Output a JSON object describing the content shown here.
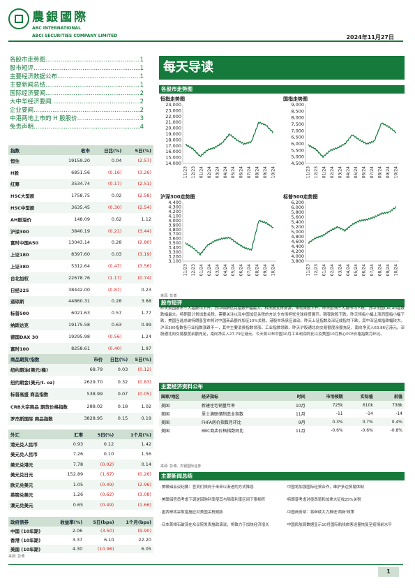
{
  "header": {
    "brand_cn": "農銀國際",
    "brand_en1": "ABC INTERNATIONAL",
    "brand_en2": "ABCI SECURITIES COMPANY LIMITED",
    "date": "2024年11月27日"
  },
  "toc": [
    {
      "label": "各股市走势图",
      "page": "1"
    },
    {
      "label": "股市短评",
      "page": "1"
    },
    {
      "label": "主要经济数据公布",
      "page": "1"
    },
    {
      "label": "主要新闻总结",
      "page": "1"
    },
    {
      "label": "国际经济要闻",
      "page": "2"
    },
    {
      "label": "大中华经济要闻",
      "page": "2"
    },
    {
      "label": "企业要闻",
      "page": "2"
    },
    {
      "label": "中港两地上市的 H 股股价",
      "page": "3"
    },
    {
      "label": "免责声明",
      "page": "4"
    }
  ],
  "indices": {
    "headers": [
      "指数",
      "收市",
      "日比(%)",
      "5日(%)"
    ],
    "rows": [
      [
        "恒生",
        "19159.20",
        "0.04",
        "(2.57)"
      ],
      [
        "H股",
        "6851.56",
        "(0.16)",
        "(3.26)"
      ],
      [
        "红筹",
        "3534.74",
        "(0.17)",
        "(2.51)"
      ],
      [
        "HSC大型股",
        "1758.75",
        "0.02",
        "(2.58)"
      ],
      [
        "HSC中型股",
        "3635.45",
        "(0.30)",
        "(2.54)"
      ],
      [
        "AH股溢价",
        "148.09",
        "0.62",
        "1.12"
      ],
      [
        "沪深300",
        "3840.19",
        "(0.21)",
        "(3.44)"
      ],
      [
        "富时中国A50",
        "13043.14",
        "0.28",
        "(2.80)"
      ],
      [
        "上证180",
        "8397.60",
        "0.03",
        "(3.19)"
      ],
      [
        "上证380",
        "5312.64",
        "(0.47)",
        "(3.56)"
      ],
      [
        "台北加权",
        "22678.76",
        "(1.17)",
        "(0.74)"
      ],
      [
        "日经225",
        "38442.00",
        "(0.87)",
        "0.23"
      ],
      [
        "道琼斯",
        "44860.31",
        "0.28",
        "3.68"
      ],
      [
        "标普500",
        "6021.63",
        "0.57",
        "1.77"
      ],
      [
        "纳斯达克",
        "19175.58",
        "0.63",
        "0.99"
      ],
      [
        "德国DAX 30",
        "19295.98",
        "(0.56)",
        "1.24"
      ],
      [
        "富时100",
        "8258.61",
        "(0.40)",
        "1.97"
      ],
      [
        "法国CAC 40",
        "7194.51",
        "(0.87)",
        "(0.49)"
      ]
    ]
  },
  "commodities": {
    "headers": [
      "商品期货/指数",
      "市价",
      "日比(%)",
      "5日(%)"
    ],
    "rows": [
      [
        "纽约期油(美元/桶)",
        "68.79",
        "0.03",
        "(0.12)"
      ],
      [
        "纽约期金(美元/t. oz)",
        "2629.70",
        "0.32",
        "(0.83)"
      ],
      [
        "标普高盛 商品指数",
        "538.99",
        "0.07",
        "(0.05)"
      ],
      [
        "CRB大宗商品 期货价格指数",
        "288.02",
        "0.18",
        "1.02"
      ],
      [
        "罗杰斯国际 商品指数",
        "3828.95",
        "0.15",
        "0.19"
      ]
    ]
  },
  "fx": {
    "headers": [
      "外汇",
      "汇率",
      "5日(%)",
      "1个月(%)"
    ],
    "rows": [
      [
        "港元兑人民币",
        "0.93",
        "0.12",
        "1.42"
      ],
      [
        "美元兑人民币",
        "7.26",
        "0.10",
        "1.56"
      ],
      [
        "美元兑港元",
        "7.78",
        "(0.02)",
        "0.14"
      ],
      [
        "美元兑日元",
        "152.89",
        "(1.67)",
        "(0.26)"
      ],
      [
        "欧元兑美元",
        "1.05",
        "(0.49)",
        "(2.96)"
      ],
      [
        "英镑兑美元",
        "1.26",
        "(0.62)",
        "(3.08)"
      ],
      [
        "澳元兑美元",
        "0.65",
        "(0.49)",
        "(1.66)"
      ]
    ]
  },
  "bonds": {
    "headers": [
      "政府债券",
      "收益率(%)",
      "5日(bps)",
      "1个月(bps)"
    ],
    "rows": [
      [
        "中国 (10年期)",
        "2.06",
        "(3.50)",
        "(9.90)"
      ],
      [
        "香港 (10年期)",
        "3.37",
        "6.10",
        "22.20"
      ],
      [
        "美国 (10年期)",
        "4.30",
        "(10.96)",
        "6.05"
      ]
    ],
    "source": "来源: 彭博"
  },
  "main": {
    "title": "每天导读",
    "charts_section": "各股市走势图",
    "source": "来源: 彭博",
    "commentary_section": "股市短评",
    "commentary": "昨天美国股市三大指数均上升，其中纳斯达克指数升幅最大。科技股支撑反弹，带动美股上升。昨天欧洲三大股市均下跌，其中法国CAC40指数跌幅最大。特朗普计划加重关税，需要关注以及中国加征关税的言论令市场担忧全球经贸展开。隔夜欧股下跌。昨天恒指小幅上涨而国指小幅下跌，美国当选总统特朗普宣布将对中国商品额外加征10%关税，港股市场承压波动。昨天上证指数及深证成指均下跌，其中深证成指跌幅较大。沪深300指数各行业指数涨跌不一，其中主要消费指数领涨。工业指数领跌。昨天沪股通北向交易额度余额充足，南向净买入63.86亿港元。深股通北向交易额度余额充足，南向净买入27.79亿港元。今天将公布中国10月工业利润同比以及美国10月核心PCE价格指数月环比。",
    "econ_section": "主要经济资料公布",
    "econ_headers": [
      "国家/地区",
      "经济指标",
      "时间",
      "市场预期",
      "实际值",
      "前值"
    ],
    "econ_rows": [
      [
        "美国",
        "新建住宅销量年率",
        "10月",
        "725k",
        "610k",
        "738k"
      ],
      [
        "美国",
        "里士满联储制造业指数",
        "11月",
        "-11",
        "-14",
        "-14"
      ],
      [
        "美国",
        "FHFA房价指数月环比",
        "9月",
        "0.3%",
        "0.7%",
        "0.4%"
      ],
      [
        "美国",
        "BBC商店价格指数同比",
        "11月",
        "-0.6%",
        "-0.6%",
        "-0.8%"
      ]
    ],
    "econ_source": "来源: 彭博、农银国际证券",
    "news_section": "主要新闻总结",
    "news_left": [
      "·美联储会议纪要：官员们倾向于未来以渐进的方式降息",
      "·美联储官员考虑下调逆回购利率使其与隔夜利率区间下限相符",
      "·墨西哥将采取措施应对美国关税威胁",
      "·日本首相石破茂在众议院发表施政演说，将致力于加快经济增长"
    ],
    "news_right": [
      "·中国将加强国际经贸合作，维护多边贸易体制",
      "·特朗普考虑对墨西哥和加拿大征收25%关税",
      "·中国商务部：将继续大力推进'两新'政策",
      "·中国民航局数据显示10月国际航线旅客运量恢复至疫情前水平"
    ]
  },
  "charts": [
    {
      "title": "恒指走势图",
      "ylim": [
        14000,
        24000
      ],
      "ticks": [
        "24,000",
        "23,000",
        "22,000",
        "21,000",
        "20,000",
        "19,000",
        "18,000",
        "17,000",
        "16,000",
        "15,000",
        "14,000"
      ]
    },
    {
      "title": "国指走势图",
      "ylim": [
        4500,
        9000
      ],
      "ticks": [
        "9,000",
        "8,500",
        "8,000",
        "7,500",
        "7,000",
        "6,500",
        "6,000",
        "5,500",
        "5,000",
        "4,500"
      ]
    },
    {
      "title": "沪深300走势图",
      "ylim": [
        3100,
        4400
      ],
      "ticks": [
        "4,400",
        "4,300",
        "4,200",
        "4,100",
        "4,000",
        "3,900",
        "3,800",
        "3,700",
        "3,600",
        "3,500",
        "3,400",
        "3,300",
        "3,200",
        "3,100"
      ]
    },
    {
      "title": "标普500走势图",
      "ylim": [
        3800,
        6200
      ],
      "ticks": [
        "6,200",
        "6,000",
        "5,800",
        "5,600",
        "5,400",
        "5,200",
        "5,000",
        "4,800",
        "4,600",
        "4,400",
        "4,200",
        "4,000",
        "3,800"
      ]
    }
  ],
  "chart_xlabels": [
    "11/23",
    "12/23",
    "01/24",
    "02/24",
    "03/24",
    "04/24",
    "05/24",
    "06/24",
    "07/24",
    "08/24",
    "09/24",
    "10/24"
  ],
  "chart_data": [
    {
      "type": "line",
      "title": "恒指走势图",
      "categories": [
        "11/23",
        "12/23",
        "01/24",
        "02/24",
        "03/24",
        "04/24",
        "05/24",
        "06/24",
        "07/24",
        "08/24",
        "09/24",
        "10/24",
        "11/24"
      ],
      "values": [
        17200,
        16500,
        15200,
        16300,
        16700,
        17500,
        19000,
        18000,
        17300,
        17700,
        21000,
        20500,
        19200
      ],
      "ylim": [
        14000,
        24000
      ]
    },
    {
      "title": "国指走势图",
      "type": "line",
      "categories": [
        "11/23",
        "12/23",
        "01/24",
        "02/24",
        "03/24",
        "04/24",
        "05/24",
        "06/24",
        "07/24",
        "08/24",
        "09/24",
        "10/24",
        "11/24"
      ],
      "values": [
        5900,
        5600,
        5000,
        5500,
        5700,
        6000,
        6700,
        6300,
        6000,
        6200,
        7600,
        7300,
        6850
      ],
      "ylim": [
        4500,
        9000
      ]
    },
    {
      "title": "沪深300走势图",
      "type": "line",
      "categories": [
        "11/23",
        "12/23",
        "01/24",
        "02/24",
        "03/24",
        "04/24",
        "05/24",
        "06/24",
        "07/24",
        "08/24",
        "09/24",
        "10/24",
        "11/24"
      ],
      "values": [
        3500,
        3400,
        3250,
        3450,
        3550,
        3600,
        3620,
        3500,
        3400,
        3350,
        4000,
        3950,
        3840
      ],
      "ylim": [
        3100,
        4400
      ]
    },
    {
      "title": "标普500走势图",
      "type": "line",
      "categories": [
        "11/23",
        "12/23",
        "01/24",
        "02/24",
        "03/24",
        "04/24",
        "05/24",
        "06/24",
        "07/24",
        "08/24",
        "09/24",
        "10/24",
        "11/24"
      ],
      "values": [
        4550,
        4750,
        4850,
        5050,
        5200,
        5050,
        5300,
        5450,
        5500,
        5600,
        5750,
        5800,
        6020
      ],
      "ylim": [
        3800,
        6200
      ]
    }
  ],
  "page_number": "1",
  "colors": {
    "brand": "#157a3b",
    "header_bg": "#cfe0d2",
    "neg": "#d22"
  }
}
